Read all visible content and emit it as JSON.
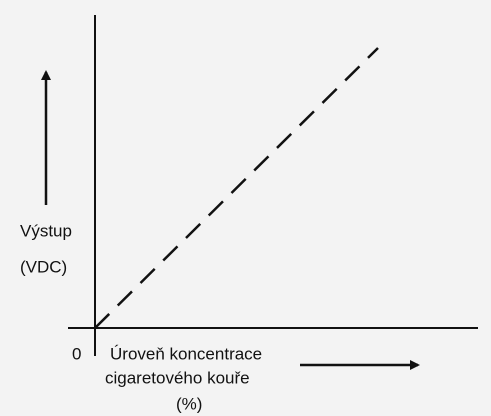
{
  "axes": {
    "y_label": [
      "Výstup",
      "(VDC)"
    ],
    "origin_label": "0",
    "x_label": [
      "Úroveň koncentrace",
      "cigaretového kouře",
      "(%)"
    ]
  }
}
